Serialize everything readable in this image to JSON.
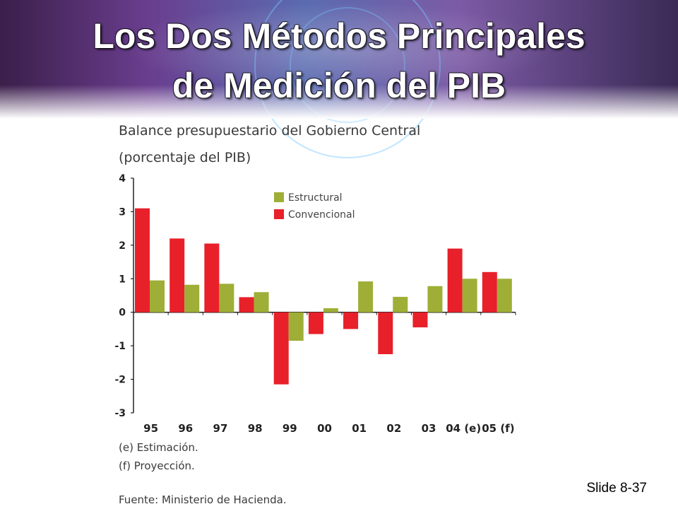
{
  "slide": {
    "title_line1": "Los Dos Métodos Principales",
    "title_line2": "de Medición del PIB",
    "slide_number": "Slide 8-37"
  },
  "notes": {
    "estimation": "(e) Estimación.",
    "projection": "(f) Proyección.",
    "source": "Fuente: Ministerio de Hacienda."
  },
  "chart_data": {
    "type": "bar",
    "title": "Balance presupuestario del Gobierno Central",
    "subtitle": "(porcentaje del PIB)",
    "categories": [
      "95",
      "96",
      "97",
      "98",
      "99",
      "00",
      "01",
      "02",
      "03",
      "04 (e)",
      "05 (f)"
    ],
    "series": [
      {
        "name": "Convencional",
        "color": "#e8202a",
        "values": [
          3.1,
          2.2,
          2.05,
          0.45,
          -2.15,
          -0.65,
          -0.5,
          -1.25,
          -0.45,
          1.9,
          1.2
        ]
      },
      {
        "name": "Estructural",
        "color": "#9fae36",
        "values": [
          0.95,
          0.82,
          0.85,
          0.6,
          -0.85,
          0.12,
          0.92,
          0.46,
          0.78,
          1.0,
          1.0
        ]
      }
    ],
    "legend_order": [
      "Estructural",
      "Convencional"
    ],
    "legend_position": "top-center",
    "yticks": [
      "4",
      "3",
      "2",
      "1",
      "0",
      "-1",
      "-2",
      "-3"
    ],
    "ylim": [
      -3,
      4
    ],
    "grid": false
  }
}
